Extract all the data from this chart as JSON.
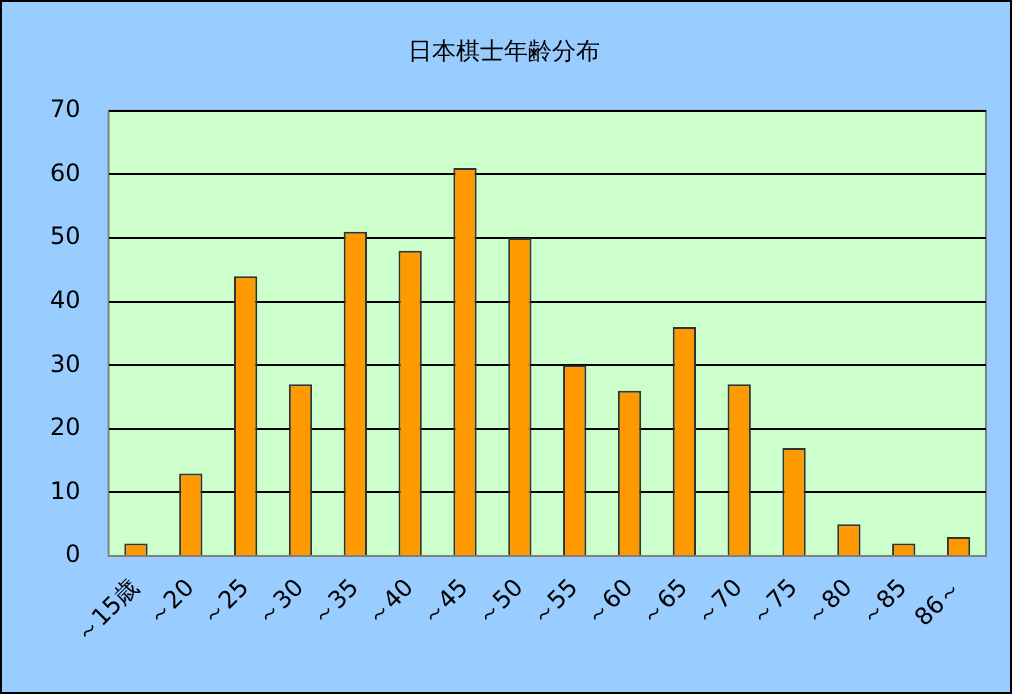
{
  "chart_data": {
    "type": "bar",
    "title": "日本棋士年齢分布",
    "categories": [
      "～15歳",
      "～20",
      "～25",
      "～30",
      "～35",
      "～40",
      "～45",
      "～50",
      "～55",
      "～60",
      "～65",
      "～70",
      "～75",
      "～80",
      "～85",
      "86～"
    ],
    "values": [
      2,
      13,
      44,
      27,
      51,
      48,
      61,
      50,
      30,
      26,
      36,
      27,
      17,
      5,
      2,
      3
    ],
    "color": "#ff9900",
    "ylim": [
      0,
      70
    ],
    "yticks": [
      0,
      10,
      20,
      30,
      40,
      50,
      60,
      70
    ],
    "grid": "y"
  }
}
